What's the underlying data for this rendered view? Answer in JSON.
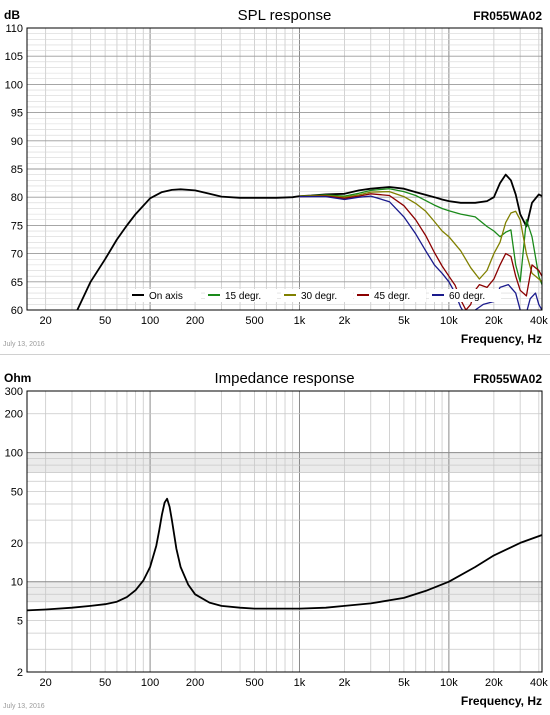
{
  "chart_data": [
    {
      "type": "line",
      "title": "SPL response",
      "model": "FR055WA02",
      "y_unit": "dB",
      "xlabel": "Frequency, Hz",
      "date": "July 13, 2016",
      "x_scale": "log",
      "xlim": [
        15,
        42000
      ],
      "ylim": [
        60,
        110
      ],
      "x_ticks": [
        20,
        50,
        100,
        200,
        500,
        1000,
        2000,
        5000,
        10000,
        20000,
        40000
      ],
      "x_tick_labels": [
        "20",
        "50",
        "100",
        "200",
        "500",
        "1k",
        "2k",
        "5k",
        "10k",
        "20k",
        "40k"
      ],
      "y_ticks": [
        60,
        65,
        70,
        75,
        80,
        85,
        90,
        95,
        100,
        105,
        110
      ],
      "y_tick_labels": [
        "60",
        "65",
        "70",
        "75",
        "80",
        "85",
        "90",
        "95",
        "100",
        "105",
        "110"
      ],
      "grid": true,
      "legend_position": "bottom",
      "series": [
        {
          "name": "On axis",
          "color": "#000000",
          "x": [
            30,
            40,
            50,
            60,
            70,
            80,
            100,
            120,
            140,
            160,
            200,
            250,
            300,
            400,
            500,
            700,
            900,
            1000,
            1200,
            1500,
            2000,
            2500,
            3000,
            4000,
            5000,
            6000,
            7000,
            8000,
            9000,
            10000,
            12000,
            15000,
            18000,
            20000,
            22000,
            24000,
            26000,
            28000,
            30000,
            33000,
            36000,
            40000,
            42000
          ],
          "values": [
            58,
            65,
            69,
            72.5,
            75,
            77,
            79.8,
            80.9,
            81.3,
            81.4,
            81.2,
            80.6,
            80.1,
            79.9,
            79.9,
            79.9,
            80,
            80.2,
            80.3,
            80.5,
            80.6,
            81.2,
            81.5,
            81.8,
            81.5,
            80.9,
            80.4,
            80,
            79.6,
            79.3,
            79,
            79,
            79.3,
            80,
            82.5,
            84,
            83,
            80.5,
            77,
            74.8,
            79,
            80.5,
            80.2
          ]
        },
        {
          "name": "15 degr.",
          "color": "#1a8a1a",
          "x": [
            1000,
            1500,
            2000,
            2500,
            3000,
            4000,
            5000,
            6000,
            7000,
            8000,
            9000,
            10000,
            12000,
            15000,
            18000,
            20000,
            22000,
            24000,
            26000,
            28000,
            30000,
            33000,
            36000,
            40000,
            42000
          ],
          "values": [
            80.2,
            80.4,
            80.2,
            80.7,
            81.2,
            81.5,
            81,
            80.3,
            79.4,
            78.6,
            78,
            77.6,
            77,
            76.5,
            74.8,
            74,
            73,
            73.8,
            74.2,
            68,
            65,
            76,
            73,
            66,
            64.5
          ]
        },
        {
          "name": "30 degr.",
          "color": "#808000",
          "x": [
            1000,
            1500,
            2000,
            2500,
            3000,
            4000,
            5000,
            6000,
            7000,
            8000,
            9000,
            10000,
            12000,
            14000,
            16000,
            18000,
            20000,
            22000,
            24000,
            26000,
            28000,
            30000,
            33000,
            36000,
            40000,
            42000
          ],
          "values": [
            80.2,
            80.3,
            80,
            80.4,
            80.9,
            81,
            80.1,
            78.9,
            77.5,
            75.7,
            74,
            73,
            70.5,
            67.5,
            65.5,
            67,
            70,
            72,
            75.5,
            77.2,
            77.5,
            76,
            70,
            66.5,
            65.5,
            65
          ]
        },
        {
          "name": "45 degr.",
          "color": "#8b0000",
          "x": [
            1000,
            1500,
            2000,
            2500,
            3000,
            4000,
            5000,
            6000,
            7000,
            8000,
            9000,
            10000,
            11000,
            12000,
            13000,
            14000,
            15000,
            16000,
            18000,
            20000,
            22000,
            24000,
            26000,
            28000,
            30000,
            33000,
            36000,
            40000,
            42000
          ],
          "values": [
            80.1,
            80.2,
            79.8,
            80.2,
            80.6,
            80.3,
            78.5,
            76,
            73.2,
            70.2,
            67.8,
            66,
            64.4,
            61.8,
            60,
            61,
            63.5,
            64.5,
            64,
            65.5,
            68,
            70,
            69.5,
            66,
            63.5,
            62.5,
            68,
            67,
            66
          ]
        },
        {
          "name": "60 degr.",
          "color": "#1a1a8c",
          "x": [
            1000,
            1500,
            2000,
            2500,
            3000,
            4000,
            5000,
            6000,
            7000,
            8000,
            9000,
            10000,
            11000,
            12000,
            13000,
            15000,
            17000,
            20000,
            22000,
            25000,
            28000,
            30000,
            33000,
            35000,
            38000,
            40000,
            42000
          ],
          "values": [
            80.1,
            80.1,
            79.6,
            80,
            80.2,
            79.2,
            76.5,
            73.5,
            70.5,
            68,
            66.5,
            65,
            63,
            60.5,
            59,
            60,
            61,
            61.5,
            64,
            64.5,
            63,
            60,
            59.5,
            62,
            63,
            61,
            60
          ]
        }
      ]
    },
    {
      "type": "line",
      "title": "Impedance response",
      "model": "FR055WA02",
      "y_unit": "Ohm",
      "xlabel": "Frequency, Hz",
      "date": "July 13, 2016",
      "x_scale": "log",
      "y_scale": "log",
      "xlim": [
        15,
        42000
      ],
      "ylim": [
        2,
        300
      ],
      "x_ticks": [
        20,
        50,
        100,
        200,
        500,
        1000,
        2000,
        5000,
        10000,
        20000,
        40000
      ],
      "x_tick_labels": [
        "20",
        "50",
        "100",
        "200",
        "500",
        "1k",
        "2k",
        "5k",
        "10k",
        "20k",
        "40k"
      ],
      "y_ticks": [
        2,
        5,
        10,
        20,
        50,
        100,
        200,
        300
      ],
      "y_tick_labels": [
        "2",
        "5",
        "10",
        "20",
        "50",
        "100",
        "200",
        "300"
      ],
      "shaded_bands": [
        [
          7,
          10
        ],
        [
          70,
          100
        ]
      ],
      "grid": true,
      "series": [
        {
          "color": "#000000",
          "x": [
            15,
            20,
            30,
            40,
            50,
            60,
            70,
            80,
            90,
            100,
            110,
            115,
            120,
            125,
            130,
            135,
            140,
            150,
            160,
            180,
            200,
            250,
            300,
            400,
            500,
            700,
            1000,
            1500,
            2000,
            3000,
            5000,
            7000,
            10000,
            15000,
            20000,
            30000,
            42000
          ],
          "values": [
            6,
            6.1,
            6.3,
            6.5,
            6.7,
            7,
            7.6,
            8.6,
            10.2,
            13,
            19,
            25,
            33,
            41,
            44,
            38,
            30,
            18,
            13,
            9.5,
            8,
            6.9,
            6.5,
            6.3,
            6.2,
            6.2,
            6.2,
            6.3,
            6.5,
            6.8,
            7.5,
            8.5,
            10,
            13,
            16,
            20,
            23
          ]
        }
      ]
    }
  ]
}
